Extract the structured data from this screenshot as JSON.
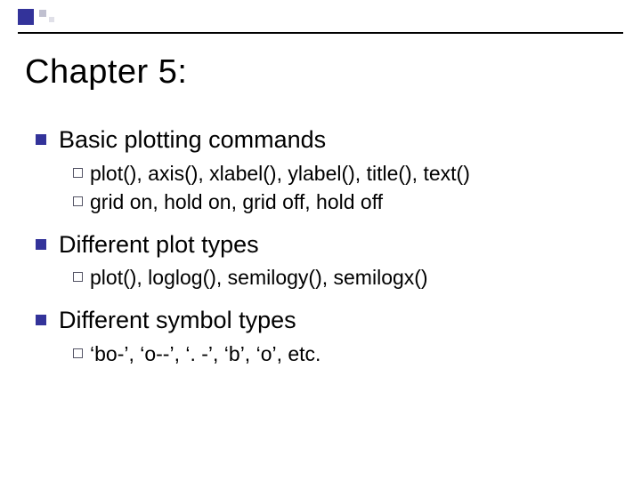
{
  "colors": {
    "accent": "#33339a",
    "text": "#000000",
    "background": "#ffffff",
    "bullet_hollow_border": "#555566"
  },
  "typography": {
    "title_fontsize": 38,
    "level1_fontsize": 27,
    "level2_fontsize": 23,
    "font_family": "Arial"
  },
  "slide": {
    "title": "Chapter 5:",
    "sections": [
      {
        "heading": "Basic plotting commands",
        "items": [
          "plot(), axis(), xlabel(), ylabel(), title(), text()",
          "grid on, hold on, grid off, hold off"
        ]
      },
      {
        "heading": "Different plot types",
        "items": [
          "plot(), loglog(), semilogy(), semilogx()"
        ]
      },
      {
        "heading": "Different symbol types",
        "items": [
          "‘bo-’, ‘o--’, ‘. -’, ‘b’, ‘o’, etc."
        ]
      }
    ]
  }
}
